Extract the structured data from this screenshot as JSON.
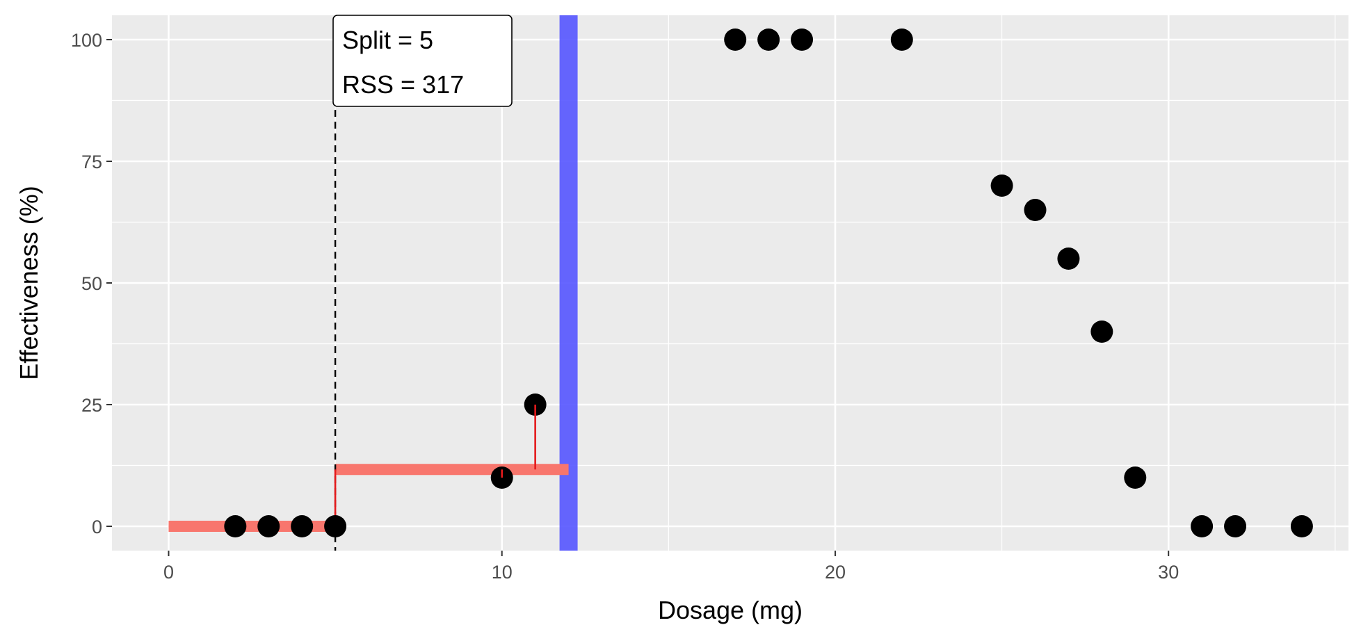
{
  "chart_data": {
    "type": "scatter",
    "xlabel": "Dosage (mg)",
    "ylabel": "Effectiveness (%)",
    "xlim": [
      -1.7,
      35.4
    ],
    "ylim": [
      -5,
      105
    ],
    "x_ticks": [
      0,
      10,
      20,
      30
    ],
    "y_ticks": [
      0,
      25,
      50,
      75,
      100
    ],
    "x_tick_labels": [
      "0",
      "10",
      "20",
      "30"
    ],
    "y_tick_labels": [
      "0",
      "25",
      "50",
      "75",
      "100"
    ],
    "grid": true,
    "points": [
      {
        "x": 2,
        "y": 0
      },
      {
        "x": 3,
        "y": 0
      },
      {
        "x": 4,
        "y": 0
      },
      {
        "x": 5,
        "y": 0
      },
      {
        "x": 10,
        "y": 10
      },
      {
        "x": 11,
        "y": 25
      },
      {
        "x": 17,
        "y": 100
      },
      {
        "x": 18,
        "y": 100
      },
      {
        "x": 19,
        "y": 100
      },
      {
        "x": 22,
        "y": 100
      },
      {
        "x": 25,
        "y": 70
      },
      {
        "x": 26,
        "y": 65
      },
      {
        "x": 27,
        "y": 55
      },
      {
        "x": 28,
        "y": 40
      },
      {
        "x": 29,
        "y": 10
      },
      {
        "x": 31,
        "y": 0
      },
      {
        "x": 32,
        "y": 0
      },
      {
        "x": 34,
        "y": 0
      }
    ],
    "fit_segments": [
      {
        "x_start": 0,
        "x_end": 5,
        "y": 0
      },
      {
        "x_start": 5,
        "x_end": 12,
        "y": 11.67
      }
    ],
    "residuals": [
      {
        "x": 10,
        "y_from": 11.67,
        "y_to": 10
      },
      {
        "x": 11,
        "y_from": 11.67,
        "y_to": 25
      }
    ],
    "split_line_x": 5,
    "highlight_band_x": 12,
    "annotation": {
      "lines": [
        "Split = 5",
        "RSS = 317"
      ],
      "x": 5,
      "y": 100
    },
    "colors": {
      "panel_bg": "#ebebeb",
      "grid": "#ffffff",
      "points": "#000000",
      "fit": "#f8766d",
      "residual": "#e41a1c",
      "band": "#5555ff",
      "split_line": "#000000"
    }
  }
}
